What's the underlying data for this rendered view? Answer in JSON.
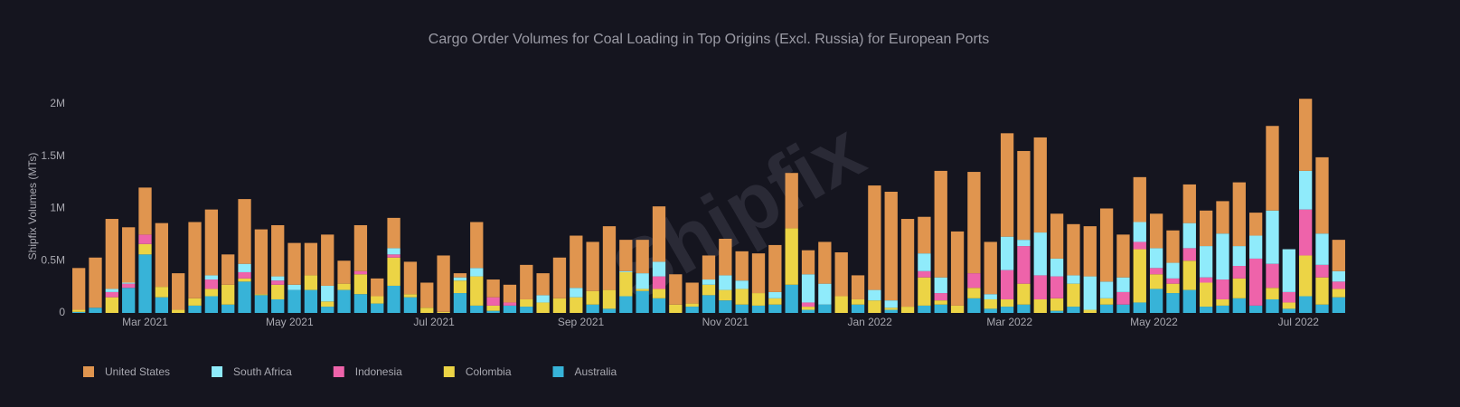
{
  "chart_data": {
    "type": "bar",
    "stacked": true,
    "title": "Cargo Order Volumes for Coal Loading in Top Origins (Excl. Russia) for European Ports",
    "y_label": "Shipfix Volumes (MTs)",
    "watermark": "Shipfix",
    "x": [
      "2021-02-01",
      "2021-02-08",
      "2021-02-15",
      "2021-02-22",
      "2021-03-01",
      "2021-03-08",
      "2021-03-15",
      "2021-03-22",
      "2021-03-29",
      "2021-04-05",
      "2021-04-12",
      "2021-04-19",
      "2021-04-26",
      "2021-05-03",
      "2021-05-10",
      "2021-05-17",
      "2021-05-24",
      "2021-05-31",
      "2021-06-07",
      "2021-06-14",
      "2021-06-21",
      "2021-06-28",
      "2021-07-05",
      "2021-07-12",
      "2021-07-19",
      "2021-07-26",
      "2021-08-02",
      "2021-08-09",
      "2021-08-16",
      "2021-08-23",
      "2021-08-30",
      "2021-09-06",
      "2021-09-13",
      "2021-09-20",
      "2021-09-27",
      "2021-10-04",
      "2021-10-11",
      "2021-10-18",
      "2021-10-25",
      "2021-11-01",
      "2021-11-08",
      "2021-11-15",
      "2021-11-22",
      "2021-11-29",
      "2021-12-06",
      "2021-12-13",
      "2021-12-20",
      "2021-12-27",
      "2022-01-03",
      "2022-01-10",
      "2022-01-17",
      "2022-01-24",
      "2022-01-31",
      "2022-02-07",
      "2022-02-14",
      "2022-02-21",
      "2022-02-28",
      "2022-03-07",
      "2022-03-14",
      "2022-03-21",
      "2022-03-28",
      "2022-04-04",
      "2022-04-11",
      "2022-04-18",
      "2022-04-25",
      "2022-05-02",
      "2022-05-09",
      "2022-05-16",
      "2022-05-23",
      "2022-05-30",
      "2022-06-06",
      "2022-06-13",
      "2022-06-20",
      "2022-06-27",
      "2022-07-04",
      "2022-07-11",
      "2022-07-18"
    ],
    "series": [
      {
        "name": "Australia",
        "color": "#37b3d8",
        "values": [
          10000,
          50000,
          0,
          240000,
          560000,
          150000,
          0,
          70000,
          160000,
          80000,
          300000,
          170000,
          130000,
          220000,
          220000,
          60000,
          220000,
          180000,
          90000,
          260000,
          150000,
          0,
          0,
          190000,
          70000,
          20000,
          70000,
          60000,
          0,
          0,
          0,
          80000,
          40000,
          160000,
          210000,
          140000,
          0,
          60000,
          170000,
          120000,
          80000,
          70000,
          80000,
          270000,
          30000,
          80000,
          0,
          80000,
          0,
          30000,
          0,
          70000,
          80000,
          0,
          140000,
          40000,
          60000,
          80000,
          0,
          20000,
          60000,
          0,
          80000,
          80000,
          100000,
          230000,
          190000,
          220000,
          60000,
          70000,
          140000,
          70000,
          130000,
          40000,
          160000,
          80000,
          150000
        ]
      },
      {
        "name": "Colombia",
        "color": "#ecd445",
        "values": [
          20000,
          0,
          150000,
          0,
          100000,
          100000,
          30000,
          70000,
          70000,
          190000,
          30000,
          10000,
          140000,
          0,
          140000,
          50000,
          60000,
          190000,
          70000,
          270000,
          30000,
          50000,
          10000,
          120000,
          280000,
          50000,
          0,
          70000,
          100000,
          140000,
          150000,
          130000,
          180000,
          230000,
          20000,
          90000,
          80000,
          30000,
          100000,
          100000,
          150000,
          120000,
          60000,
          540000,
          30000,
          0,
          160000,
          50000,
          120000,
          20000,
          60000,
          270000,
          40000,
          70000,
          100000,
          90000,
          70000,
          200000,
          130000,
          120000,
          220000,
          30000,
          60000,
          0,
          510000,
          140000,
          90000,
          280000,
          230000,
          60000,
          190000,
          0,
          110000,
          60000,
          390000,
          260000,
          80000
        ]
      },
      {
        "name": "Indonesia",
        "color": "#ee63aa",
        "values": [
          0,
          0,
          50000,
          40000,
          90000,
          0,
          0,
          0,
          90000,
          0,
          60000,
          0,
          40000,
          0,
          0,
          0,
          0,
          30000,
          0,
          30000,
          0,
          0,
          0,
          0,
          0,
          80000,
          30000,
          0,
          0,
          0,
          0,
          0,
          0,
          0,
          0,
          120000,
          0,
          0,
          0,
          0,
          0,
          0,
          0,
          0,
          40000,
          0,
          0,
          0,
          0,
          0,
          0,
          60000,
          70000,
          0,
          140000,
          0,
          280000,
          360000,
          230000,
          210000,
          0,
          0,
          0,
          120000,
          70000,
          60000,
          50000,
          120000,
          50000,
          190000,
          120000,
          450000,
          230000,
          100000,
          440000,
          120000,
          70000
        ]
      },
      {
        "name": "South Africa",
        "color": "#8febfb",
        "values": [
          0,
          0,
          30000,
          10000,
          0,
          0,
          0,
          0,
          40000,
          0,
          80000,
          0,
          40000,
          50000,
          0,
          150000,
          0,
          0,
          0,
          60000,
          0,
          0,
          0,
          30000,
          80000,
          0,
          0,
          0,
          70000,
          0,
          90000,
          0,
          0,
          10000,
          150000,
          140000,
          0,
          0,
          50000,
          140000,
          80000,
          0,
          60000,
          0,
          270000,
          200000,
          0,
          0,
          100000,
          70000,
          0,
          170000,
          150000,
          0,
          0,
          50000,
          320000,
          60000,
          410000,
          170000,
          80000,
          320000,
          160000,
          140000,
          190000,
          190000,
          150000,
          240000,
          300000,
          440000,
          190000,
          220000,
          510000,
          410000,
          370000,
          300000,
          100000
        ]
      },
      {
        "name": "United States",
        "color": "#e0954f",
        "values": [
          400000,
          480000,
          670000,
          530000,
          450000,
          610000,
          350000,
          730000,
          630000,
          290000,
          620000,
          620000,
          490000,
          400000,
          310000,
          490000,
          220000,
          440000,
          170000,
          290000,
          310000,
          240000,
          540000,
          40000,
          440000,
          170000,
          170000,
          330000,
          210000,
          390000,
          500000,
          470000,
          610000,
          300000,
          320000,
          530000,
          290000,
          200000,
          230000,
          350000,
          280000,
          380000,
          450000,
          530000,
          230000,
          400000,
          420000,
          230000,
          1000000,
          1040000,
          840000,
          350000,
          1020000,
          710000,
          970000,
          500000,
          990000,
          850000,
          910000,
          430000,
          490000,
          480000,
          700000,
          410000,
          430000,
          330000,
          310000,
          370000,
          340000,
          310000,
          610000,
          220000,
          810000,
          0,
          690000,
          730000,
          300000
        ]
      }
    ],
    "ylim": [
      0,
      2160000
    ],
    "yticks": [
      0,
      {
        "value": 500000,
        "label": "0.5M"
      },
      {
        "value": 1000000,
        "label": "1M"
      },
      {
        "value": 1500000,
        "label": "1.5M"
      },
      {
        "value": 2000000,
        "label": "2M"
      }
    ],
    "xticks": [
      {
        "value": "2021-03-01",
        "label": "Mar 2021"
      },
      {
        "value": "2021-05-01",
        "label": "May 2021"
      },
      {
        "value": "2021-07-01",
        "label": "Jul 2021"
      },
      {
        "value": "2021-09-01",
        "label": "Sep 2021"
      },
      {
        "value": "2021-11-01",
        "label": "Nov 2021"
      },
      {
        "value": "2022-01-01",
        "label": "Jan 2022"
      },
      {
        "value": "2022-03-01",
        "label": "Mar 2022"
      },
      {
        "value": "2022-05-01",
        "label": "May 2022"
      },
      {
        "value": "2022-07-01",
        "label": "Jul 2022"
      }
    ],
    "grid": false,
    "legend": "bottom-left"
  }
}
